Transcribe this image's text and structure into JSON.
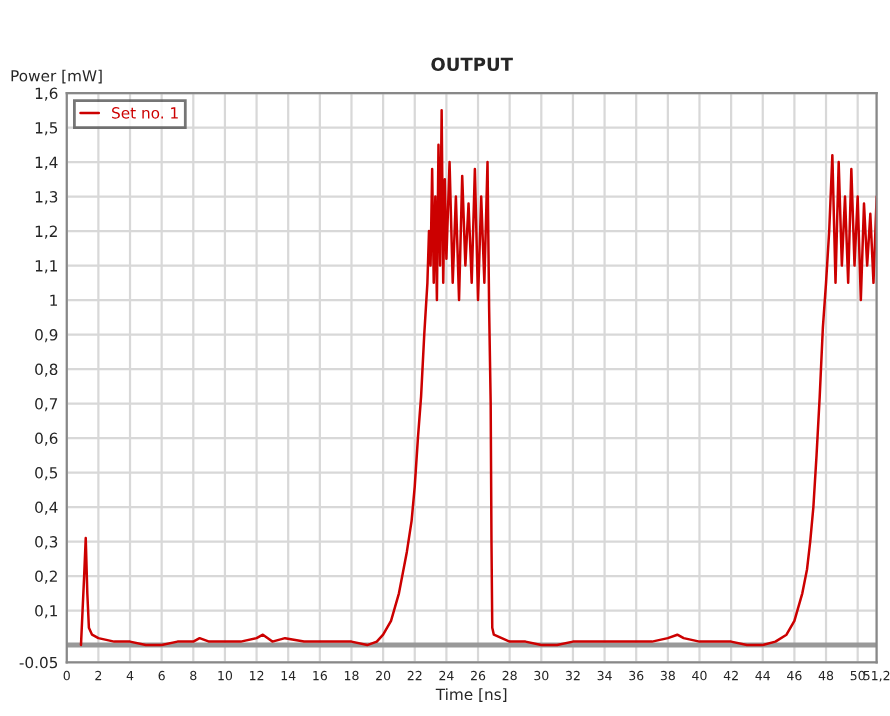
{
  "chart_data": {
    "type": "line",
    "title": "OUTPUT",
    "xlabel": "Time [ns]",
    "ylabel": "Power [mW]",
    "xlim": [
      0,
      51.2
    ],
    "xticks": [
      0,
      2,
      4,
      6,
      8,
      10,
      12,
      14,
      16,
      18,
      20,
      22,
      24,
      26,
      28,
      30,
      32,
      34,
      36,
      38,
      40,
      42,
      44,
      46,
      48,
      50,
      {
        "value": 51.2,
        "label": "51,2"
      }
    ],
    "ylim": [
      -0.05,
      1.6
    ],
    "yticks": [
      {
        "value": -0.05,
        "label": "-0.05"
      },
      {
        "value": 0.1,
        "label": "0,1"
      },
      {
        "value": 0.2,
        "label": "0,2"
      },
      {
        "value": 0.3,
        "label": "0,3"
      },
      {
        "value": 0.4,
        "label": "0,4"
      },
      {
        "value": 0.5,
        "label": "0,5"
      },
      {
        "value": 0.6,
        "label": "0,6"
      },
      {
        "value": 0.7,
        "label": "0,7"
      },
      {
        "value": 0.8,
        "label": "0,8"
      },
      {
        "value": 0.9,
        "label": "0,9"
      },
      {
        "value": 1,
        "label": "1"
      },
      {
        "value": 1.1,
        "label": "1,1"
      },
      {
        "value": 1.2,
        "label": "1,2"
      },
      {
        "value": 1.3,
        "label": "1,3"
      },
      {
        "value": 1.4,
        "label": "1,4"
      },
      {
        "value": 1.5,
        "label": "1,5"
      },
      {
        "value": 1.6,
        "label": "1,6"
      }
    ],
    "grid": true,
    "legend": "top left",
    "marker": "none",
    "line_style": "solid",
    "ref_lines": [
      {
        "axis": "y",
        "value": 0,
        "color": "#999999"
      }
    ],
    "series": [
      {
        "name": "Set no. 1",
        "color": "#cc0000",
        "x": [
          0.9,
          1.0,
          1.1,
          1.2,
          1.3,
          1.4,
          1.6,
          2.0,
          3.0,
          4.0,
          5.0,
          6.0,
          7.0,
          8.0,
          8.4,
          9.0,
          10.0,
          11.0,
          12.0,
          12.4,
          13.0,
          13.8,
          15.0,
          16.0,
          17.0,
          18.0,
          19.0,
          19.6,
          20.0,
          20.5,
          21.0,
          21.5,
          21.8,
          22.0,
          22.2,
          22.4,
          22.6,
          22.8,
          22.9,
          23.0,
          23.1,
          23.2,
          23.3,
          23.4,
          23.5,
          23.6,
          23.7,
          23.8,
          23.9,
          24.0,
          24.2,
          24.4,
          24.6,
          24.8,
          25.0,
          25.2,
          25.4,
          25.6,
          25.8,
          26.0,
          26.2,
          26.4,
          26.6,
          26.7,
          26.8,
          26.85,
          26.9,
          27.0,
          27.5,
          28.0,
          29.0,
          30.0,
          31.0,
          32.0,
          33.0,
          34.0,
          35.0,
          36.0,
          37.0,
          38.0,
          38.6,
          39.0,
          40.0,
          41.0,
          42.0,
          43.0,
          44.0,
          44.8,
          45.5,
          46.0,
          46.5,
          46.8,
          47.0,
          47.2,
          47.4,
          47.6,
          47.8,
          48.0,
          48.2,
          48.4,
          48.6,
          48.8,
          49.0,
          49.2,
          49.4,
          49.6,
          49.8,
          50.0,
          50.2,
          50.4,
          50.6,
          50.8,
          51.0,
          51.2
        ],
        "values": [
          0.0,
          0.1,
          0.2,
          0.31,
          0.15,
          0.05,
          0.03,
          0.02,
          0.01,
          0.01,
          0.0,
          0.0,
          0.01,
          0.01,
          0.02,
          0.01,
          0.01,
          0.01,
          0.02,
          0.03,
          0.01,
          0.02,
          0.01,
          0.01,
          0.01,
          0.01,
          0.0,
          0.01,
          0.03,
          0.07,
          0.15,
          0.27,
          0.36,
          0.46,
          0.6,
          0.72,
          0.9,
          1.05,
          1.2,
          1.1,
          1.38,
          1.05,
          1.3,
          1.0,
          1.45,
          1.1,
          1.55,
          1.05,
          1.35,
          1.12,
          1.4,
          1.05,
          1.3,
          1.0,
          1.36,
          1.1,
          1.28,
          1.05,
          1.38,
          1.0,
          1.3,
          1.05,
          1.4,
          0.98,
          0.7,
          0.3,
          0.05,
          0.03,
          0.02,
          0.01,
          0.01,
          0.0,
          0.0,
          0.01,
          0.01,
          0.01,
          0.01,
          0.01,
          0.01,
          0.02,
          0.03,
          0.02,
          0.01,
          0.01,
          0.01,
          0.0,
          0.0,
          0.01,
          0.03,
          0.07,
          0.15,
          0.22,
          0.3,
          0.4,
          0.55,
          0.72,
          0.92,
          1.05,
          1.2,
          1.42,
          1.05,
          1.4,
          1.1,
          1.3,
          1.05,
          1.38,
          1.1,
          1.3,
          1.0,
          1.28,
          1.1,
          1.25,
          1.05,
          1.3
        ]
      }
    ]
  }
}
